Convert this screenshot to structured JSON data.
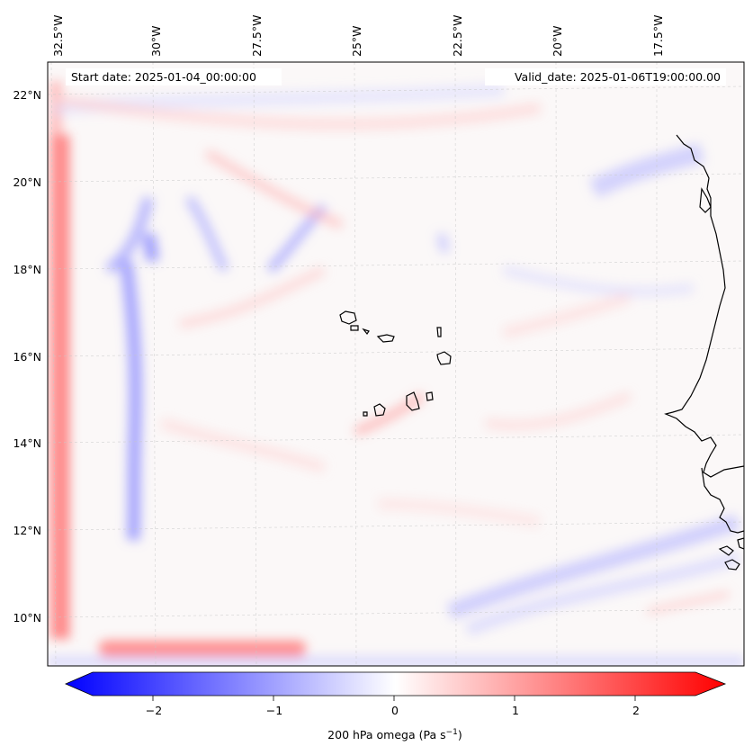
{
  "map": {
    "start_date": "Start date: 2025-01-04_00:00:00",
    "valid_date": "Valid_date: 2025-01-06T19:00:00.00",
    "lon_labels": [
      "32.5°W",
      "30°W",
      "27.5°W",
      "25°W",
      "22.5°W",
      "20°W",
      "17.5°W"
    ],
    "lat_labels": [
      "22°N",
      "20°N",
      "18°N",
      "16°N",
      "14°N",
      "12°N",
      "10°N"
    ],
    "variable": "200 hPa omega",
    "units": "Pa s",
    "units_exponent": "−1",
    "colormap": "bwr",
    "colorbar": {
      "ticks": [
        "−2",
        "−1",
        "0",
        "1",
        "2"
      ],
      "min": -2.5,
      "max": 2.5,
      "colors": {
        "negative": "#0000ff",
        "neutral": "#ffffff",
        "positive": "#ff0000"
      }
    },
    "coastline_color": "#000000",
    "grid": "dashed light gray"
  }
}
